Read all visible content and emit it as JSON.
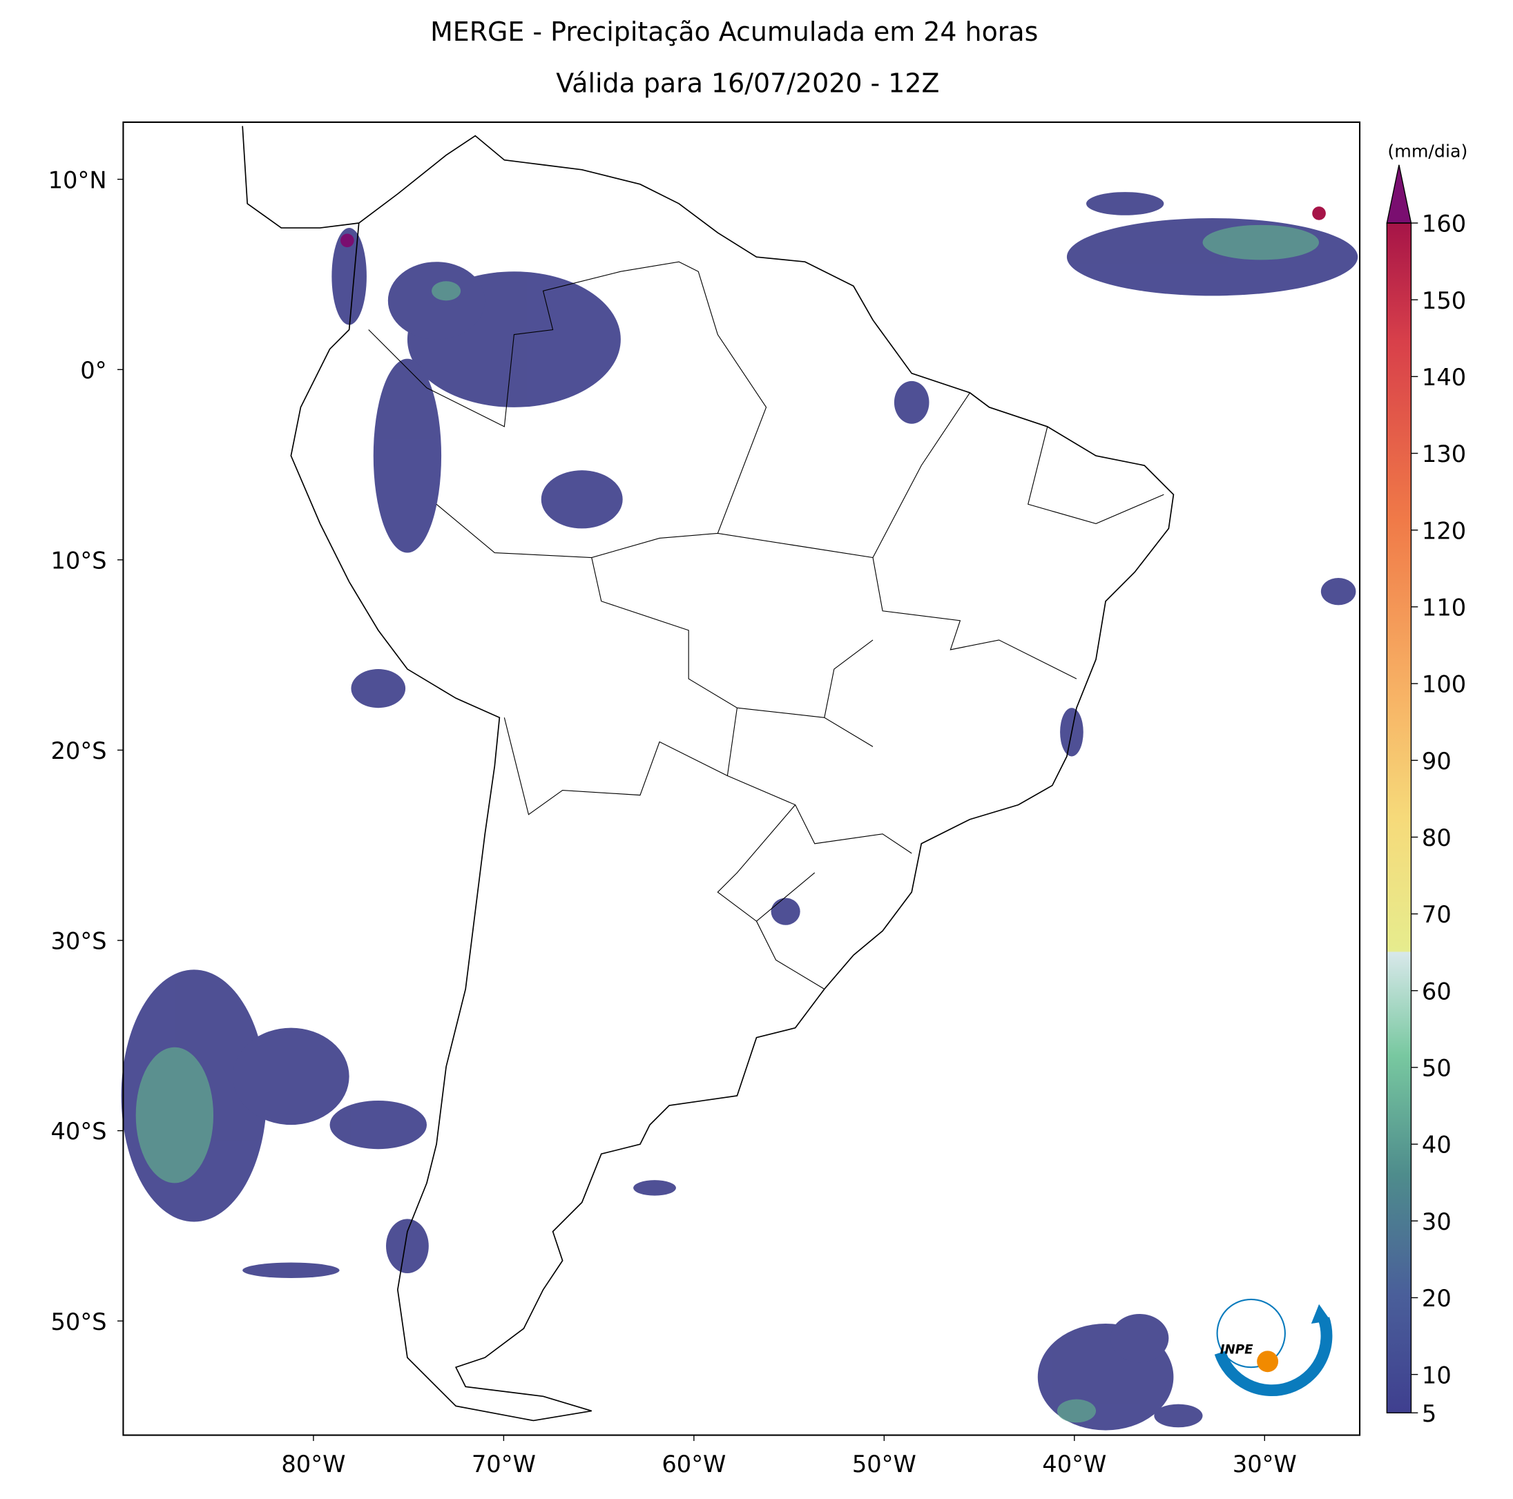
{
  "title": [
    "MERGE - Precipitação Acumulada em 24 horas",
    "Válida para 16/07/2020 - 12Z"
  ],
  "map": {
    "xlim": [
      -90,
      -25
    ],
    "ylim": [
      -56,
      13
    ],
    "xticks": [
      {
        "value": -80,
        "label": "80°W"
      },
      {
        "value": -70,
        "label": "70°W"
      },
      {
        "value": -60,
        "label": "60°W"
      },
      {
        "value": -50,
        "label": "50°W"
      },
      {
        "value": -40,
        "label": "40°W"
      },
      {
        "value": -30,
        "label": "30°W"
      }
    ],
    "yticks": [
      {
        "value": 10,
        "label": "10°N"
      },
      {
        "value": 0,
        "label": "0°"
      },
      {
        "value": -10,
        "label": "10°S"
      },
      {
        "value": -20,
        "label": "20°S"
      },
      {
        "value": -30,
        "label": "30°S"
      },
      {
        "value": -40,
        "label": "40°S"
      },
      {
        "value": -50,
        "label": "50°S"
      }
    ]
  },
  "colorbar": {
    "label": "(mm/dia)",
    "lim": [
      5,
      160
    ],
    "ticks": [
      5,
      10,
      20,
      30,
      40,
      50,
      60,
      70,
      80,
      90,
      100,
      110,
      120,
      130,
      140,
      150,
      160
    ]
  },
  "logo": "INPE"
}
